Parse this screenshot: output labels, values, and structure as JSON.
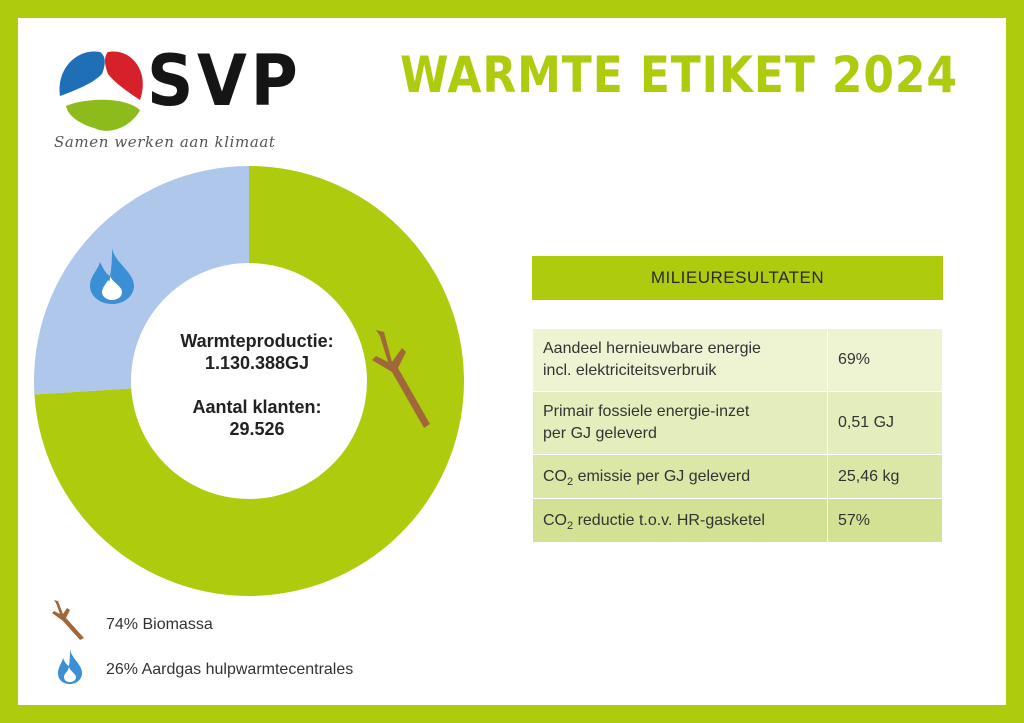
{
  "brand": {
    "name": "SVP",
    "tagline": "Samen werken aan klimaat",
    "colors": {
      "blue": "#1f6fb6",
      "red": "#d6202a",
      "green": "#8dbb1b"
    }
  },
  "title": "WARMTE ETIKET 2024",
  "center": {
    "production_label": "Warmteproductie:",
    "production_value": "1.130.388GJ",
    "customers_label": "Aantal klanten:",
    "customers_value": "29.526"
  },
  "chart_data": {
    "type": "pie",
    "categories": [
      "Biomassa",
      "Aardgas hulpwarmtecentrales"
    ],
    "values": [
      74,
      26
    ],
    "unit": "%",
    "legend_labels": [
      "74% Biomassa",
      "26% Aardgas hulpwarmtecentrales"
    ],
    "colors": [
      "#afcb0e",
      "#aec7ea"
    ],
    "icons": [
      "branch-icon",
      "flame-icon"
    ],
    "legend_position": "bottom-left"
  },
  "panel": {
    "header": "MILIEURESULTATEN",
    "rows": [
      {
        "label_line1": "Aandeel hernieuwbare energie",
        "label_line2": "incl. elektriciteitsverbruik",
        "value": "69%"
      },
      {
        "label_line1": "Primair fossiele energie-inzet",
        "label_line2": "per GJ geleverd",
        "value": "0,51 GJ"
      },
      {
        "prefix": "CO",
        "sub": "2",
        "suffix": " emissie per GJ geleverd",
        "value": "25,46 kg"
      },
      {
        "prefix": "CO",
        "sub": "2",
        "suffix": " reductie t.o.v. HR-gasketel",
        "value": "57%"
      }
    ]
  },
  "colors": {
    "frame": "#afcb0e",
    "accent": "#afcb0e",
    "gas": "#aec7ea",
    "wood": "#a0683a",
    "flame": "#3b8fd4"
  }
}
